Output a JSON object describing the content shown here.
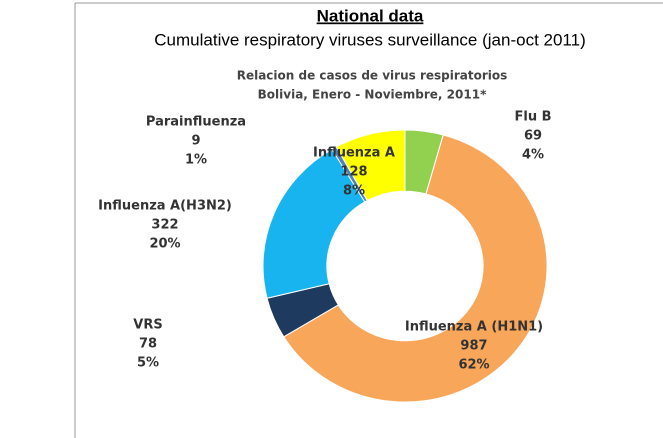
{
  "header": {
    "title": "National data",
    "subtitle": "Cumulative respiratory viruses surveillance (jan-oct 2011)"
  },
  "chart_data": {
    "type": "donut",
    "title": [
      "Relacion de casos de virus respiratorios",
      "Bolivia, Enero - Noviembre, 2011*"
    ],
    "categories": [
      "Flu B",
      "Influenza A (H1N1)",
      "VRS",
      "Influenza A(H3N2)",
      "Parainfluenza",
      "Influenza A"
    ],
    "values": [
      69,
      987,
      78,
      322,
      9,
      128
    ],
    "percent_labels": [
      "4%",
      "62%",
      "5%",
      "20%",
      "1%",
      "8%"
    ],
    "colors": [
      "#92d050",
      "#f8a65a",
      "#1f3a5f",
      "#18b4f0",
      "#4f81bd",
      "#ffff00"
    ]
  }
}
